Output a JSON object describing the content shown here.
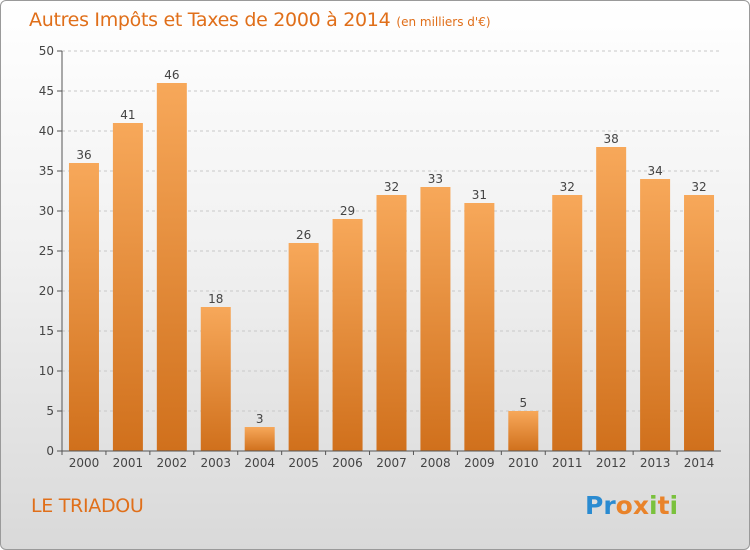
{
  "title": "Autres Impôts et Taxes de 2000 à 2014",
  "unit_label": "(en milliers d'€)",
  "commune": "LE TRIADOU",
  "logo": {
    "text": "Proxiti",
    "letters": [
      "P",
      "r",
      "o",
      "x",
      "i",
      "t",
      "i"
    ],
    "colors": [
      "#2a8bd1",
      "#2a8bd1",
      "#e9832a",
      "#e9832a",
      "#7ac13c",
      "#e9832a",
      "#7ac13c"
    ]
  },
  "colors": {
    "bar_light": "#f7a85a",
    "bar_dark": "#d0701c",
    "text": "#e06f1a",
    "axis": "#555555",
    "grid": "#c8c8c8"
  },
  "chart_data": {
    "type": "bar",
    "categories": [
      "2000",
      "2001",
      "2002",
      "2003",
      "2004",
      "2005",
      "2006",
      "2007",
      "2008",
      "2009",
      "2010",
      "2011",
      "2012",
      "2013",
      "2014"
    ],
    "values": [
      36,
      41,
      46,
      18,
      3,
      26,
      29,
      32,
      33,
      31,
      5,
      32,
      38,
      34,
      32
    ],
    "title": "Autres Impôts et Taxes de 2000 à 2014",
    "ylim": [
      0,
      50
    ],
    "yticks": [
      0,
      5,
      10,
      15,
      20,
      25,
      30,
      35,
      40,
      45,
      50
    ],
    "grid": true
  }
}
